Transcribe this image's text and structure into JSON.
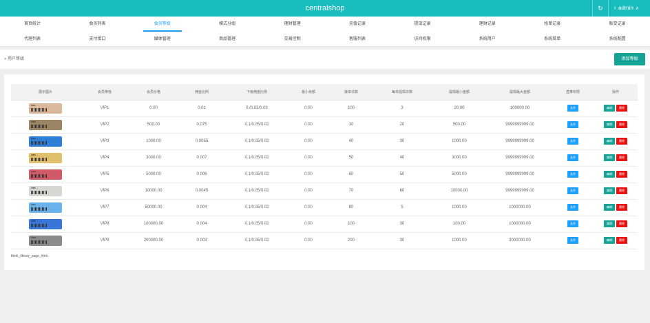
{
  "topbar": {
    "brand": "centralshop",
    "refresh_icon": "refresh-icon",
    "user_icon": "user-icon",
    "username": "admin"
  },
  "nav": {
    "row1": [
      {
        "label": "首页统计"
      },
      {
        "label": "会员列表"
      },
      {
        "label": "会员等级",
        "active": true
      },
      {
        "label": "模式分组"
      },
      {
        "label": "理财管理"
      },
      {
        "label": "充值记录"
      },
      {
        "label": "提现记录"
      },
      {
        "label": "理财记录"
      },
      {
        "label": "抢单记录"
      },
      {
        "label": "账变记录"
      }
    ],
    "row2": [
      {
        "label": "代理列表"
      },
      {
        "label": "支付接口"
      },
      {
        "label": "媒体管理"
      },
      {
        "label": "商品管理"
      },
      {
        "label": "交易控制"
      },
      {
        "label": "客服列表"
      },
      {
        "label": "访问权限"
      },
      {
        "label": "系统用户"
      },
      {
        "label": "系统菜单"
      },
      {
        "label": "系统配置"
      }
    ]
  },
  "breadcrumb": {
    "text": "» 用户等级"
  },
  "actions": {
    "add_label": "添加等级"
  },
  "table": {
    "headers": [
      "展示图片",
      "会员等级",
      "会员价格",
      "佣金比例",
      "下级佣金比例",
      "最小余额",
      "接单次数",
      "每日提现次数",
      "提现最小金额",
      "提现最大金额",
      "直推权限",
      "操作"
    ],
    "rows": [
      {
        "card_color": "#dbb89c",
        "card_label": "VIP1",
        "level": "VIP1",
        "price": "0.00",
        "commission": "0.01",
        "sub_commission": "0./0.03/0.03",
        "min_balance": "0.00",
        "order_count": "100",
        "daily_withdraw": "3",
        "withdraw_min": "20.00",
        "withdraw_max": "100000.00",
        "permission": "允许"
      },
      {
        "card_color": "#9b8464",
        "card_label": "VIP2",
        "level": "VIP2",
        "price": "500.00",
        "commission": "0.075",
        "sub_commission": "0.1/0.05/0.02",
        "min_balance": "0.00",
        "order_count": "30",
        "daily_withdraw": "20",
        "withdraw_min": "500.00",
        "withdraw_max": "9999999999.00",
        "permission": "允许"
      },
      {
        "card_color": "#2f7fd6",
        "card_label": "VIP3",
        "level": "VIP3",
        "price": "1000.00",
        "commission": "0.0065",
        "sub_commission": "0.1/0.05/0.02",
        "min_balance": "0.00",
        "order_count": "40",
        "daily_withdraw": "30",
        "withdraw_min": "1000.00",
        "withdraw_max": "9999999999.00",
        "permission": "允许"
      },
      {
        "card_color": "#e0c06c",
        "card_label": "VIP4",
        "level": "VIP4",
        "price": "3000.00",
        "commission": "0.007",
        "sub_commission": "0.1/0.05/0.02",
        "min_balance": "0.00",
        "order_count": "50",
        "daily_withdraw": "40",
        "withdraw_min": "3000.00",
        "withdraw_max": "9999999999.00",
        "permission": "允许"
      },
      {
        "card_color": "#d05b68",
        "card_label": "VIP5",
        "level": "VIP5",
        "price": "5000.00",
        "commission": "0.006",
        "sub_commission": "0.1/0.05/0.02",
        "min_balance": "0.00",
        "order_count": "60",
        "daily_withdraw": "50",
        "withdraw_min": "5000.00",
        "withdraw_max": "9999999999.00",
        "permission": "允许"
      },
      {
        "card_color": "#d8d6d0",
        "card_label": "VIP6",
        "level": "VIP6",
        "price": "10000.00",
        "commission": "0.0045",
        "sub_commission": "0.1/0.05/0.02",
        "min_balance": "0.00",
        "order_count": "70",
        "daily_withdraw": "60",
        "withdraw_min": "10000.00",
        "withdraw_max": "9999999999.00",
        "permission": "允许"
      },
      {
        "card_color": "#6cb2ea",
        "card_label": "VIP7",
        "level": "VIP7",
        "price": "50000.00",
        "commission": "0.004",
        "sub_commission": "0.1/0.05/0.02",
        "min_balance": "0.00",
        "order_count": "80",
        "daily_withdraw": "5",
        "withdraw_min": "1000.00",
        "withdraw_max": "1000000.00",
        "permission": "允许"
      },
      {
        "card_color": "#3a75d8",
        "card_label": "VIP8",
        "level": "VIP8",
        "price": "100000.00",
        "commission": "0.004",
        "sub_commission": "0.1/0.05/0.02",
        "min_balance": "0.00",
        "order_count": "100",
        "daily_withdraw": "30",
        "withdraw_min": "100.00",
        "withdraw_max": "1000000.00",
        "permission": "允许"
      },
      {
        "card_color": "#8a8a8a",
        "card_label": "VIP9",
        "level": "VIP9",
        "price": "200000.00",
        "commission": "0.003",
        "sub_commission": "0.1/0.05/0.02",
        "min_balance": "0.00",
        "order_count": "200",
        "daily_withdraw": "30",
        "withdraw_min": "1000.00",
        "withdraw_max": "3000000.00",
        "permission": "允许"
      }
    ],
    "edit_label": "编辑",
    "delete_label": "删除"
  },
  "pager_text": "think_library_page_html",
  "colors": {
    "teal": "#19bdbd",
    "accent": "#1e9fff",
    "green_btn": "#14a394",
    "red_btn": "#ee1111",
    "price_green": "#5fb878"
  }
}
